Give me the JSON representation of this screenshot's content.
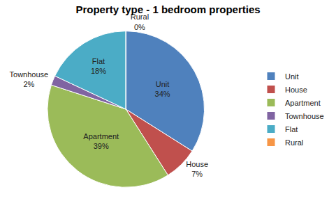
{
  "chart_data": {
    "type": "pie",
    "title": "Property type - 1 bedroom properties",
    "categories": [
      "Unit",
      "House",
      "Apartment",
      "Townhouse",
      "Flat",
      "Rural"
    ],
    "values": [
      34,
      7,
      39,
      2,
      18,
      0
    ],
    "value_labels": [
      "34%",
      "7%",
      "39%",
      "2%",
      "18%",
      "0%"
    ],
    "colors": [
      "#4f81bd",
      "#c0504d",
      "#9bbb59",
      "#8064a2",
      "#4bacc6",
      "#f79646"
    ],
    "data_labels": true,
    "legend": "right"
  }
}
